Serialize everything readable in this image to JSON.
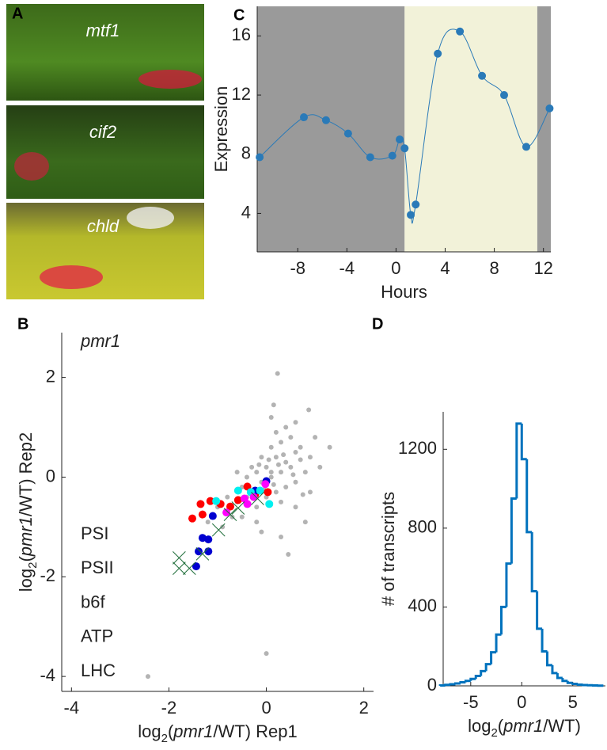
{
  "panel_a": {
    "label": "A",
    "photos": [
      {
        "label": "mtf1"
      },
      {
        "label": "cif2"
      },
      {
        "label": "chld"
      }
    ]
  },
  "chart_data": [
    {
      "type": "line",
      "panel": "C",
      "x": [
        -11.1,
        -7.5,
        -5.7,
        -3.9,
        -2.1,
        -0.3,
        0.3,
        0.7,
        1.2,
        1.6,
        3.4,
        5.2,
        7.0,
        8.8,
        10.6,
        12.5
      ],
      "series": [
        {
          "color": "#2a7ab8",
          "values": [
            7.8,
            10.5,
            10.3,
            9.4,
            7.8,
            7.9,
            9.0,
            8.4,
            3.9,
            4.6,
            14.8,
            16.3,
            13.3,
            12.0,
            8.5,
            11.1
          ]
        }
      ],
      "xlim": [
        -11.3,
        12.6
      ],
      "ylim": [
        1.4,
        18
      ],
      "xticks": [
        -8,
        -4,
        0,
        4,
        8,
        12
      ],
      "yticks": [
        4,
        8,
        12,
        16
      ],
      "xlabel": [
        {
          "text": "Hours"
        }
      ],
      "ylabel": [
        {
          "text": "Expression"
        }
      ],
      "shaded_regions": [
        {
          "x0": -11.3,
          "x1": 0.7,
          "color": "#9a9a9a"
        },
        {
          "x0": 0.7,
          "x1": 11.5,
          "color": "#f2f2d9"
        },
        {
          "x0": 11.5,
          "x1": 12.6,
          "color": "#9a9a9a"
        }
      ],
      "smooth": true
    },
    {
      "type": "scatter",
      "panel": "B",
      "title": "pmr1",
      "series": [
        {
          "color": "#b3b3b3",
          "marker": "dot",
          "x": [
            0.23,
            0.87,
            0.1,
            0,
            -2.43,
            0.6,
            0.4,
            0.2,
            0,
            -0.2,
            -0.1,
            0.1,
            0.3,
            0.5,
            0.7,
            0.9,
            0.8,
            0.4,
            0.2,
            0,
            -0.3,
            -0.5,
            -0.4,
            -0.6,
            -0.8,
            -1.0,
            -0.7,
            -0.2,
            0.3,
            0.6,
            0.5,
            0.3,
            0.1,
            -0.1,
            0.2,
            0.4,
            1.0,
            1.1,
            0.9,
            0.6,
            -0.2,
            -0.5,
            -0.9,
            -1.2,
            0.3,
            0.8,
            0.45,
            -0.1,
            0.1,
            0.0,
            -0.15,
            0.35,
            0.15,
            -0.3,
            0.55,
            0.05,
            -0.05,
            0.25,
            0.7,
            -0.4,
            0.6,
            0.15,
            0.75,
            1.3,
            -0.6
          ],
          "values": [
            2.08,
            1.35,
            1.2,
            -3.54,
            -4.0,
            0.5,
            0.3,
            0.4,
            0.2,
            0.1,
            -0.1,
            0,
            0.1,
            0.2,
            0.6,
            0.4,
            0.1,
            -0.2,
            -0.3,
            -0.4,
            -0.3,
            -0.2,
            0,
            -0.5,
            -0.4,
            -0.6,
            -0.8,
            -0.6,
            -0.5,
            -0.1,
            0.8,
            0.7,
            0.6,
            0.4,
            0.9,
            1.0,
            0.8,
            0.2,
            -0.3,
            -0.6,
            -0.9,
            -0.8,
            -1.0,
            -0.9,
            -1.2,
            -0.9,
            -1.55,
            -1.1,
            0.1,
            -0.1,
            0.25,
            0.45,
            -0.15,
            0.2,
            0.05,
            0.35,
            -0.25,
            0.25,
            0.35,
            -0.4,
            1.1,
            1.45,
            -0.35,
            0.6,
            0.1
          ]
        },
        {
          "name": "PSI",
          "color": "#ff0000",
          "marker": "circle",
          "x": [
            -1.52,
            -1.31,
            -1.15,
            -0.94,
            -1.35,
            -0.58,
            -0.23,
            0.03,
            -0.39,
            -0.74
          ],
          "values": [
            -0.83,
            -0.75,
            -0.48,
            -0.54,
            -0.54,
            -0.46,
            -0.35,
            -0.3,
            -0.19,
            -0.59
          ]
        },
        {
          "name": "PSII",
          "color": "#0000d0",
          "legend_color": "#1f78c8",
          "marker": "circle",
          "x": [
            0,
            -1.1,
            -1.31,
            -1.19,
            -1.39,
            -1.19,
            -1.44,
            -0.23
          ],
          "values": [
            -0.08,
            -0.78,
            -1.22,
            -1.25,
            -1.49,
            -1.49,
            -1.79,
            -0.27
          ]
        },
        {
          "name": "b6f",
          "color": "#00f0f0",
          "marker": "circle",
          "x": [
            -1.03,
            -0.58,
            0.06,
            -0.32,
            -0.13
          ],
          "values": [
            -0.48,
            -0.27,
            -0.54,
            -0.3,
            -0.27
          ]
        },
        {
          "name": "ATP",
          "color": "#ff00ff",
          "marker": "circle",
          "x": [
            -0.82,
            -0.39,
            -0.02,
            -0.26,
            -0.45
          ],
          "values": [
            -0.71,
            -0.54,
            -0.14,
            -0.4,
            -0.43
          ]
        },
        {
          "name": "LHC",
          "color": "#1f6e3a",
          "marker": "x",
          "x": [
            -1.79,
            -1.79,
            -1.58,
            -1.31,
            -0.98,
            -0.74,
            -0.58,
            -0.18
          ],
          "values": [
            -1.62,
            -1.83,
            -1.83,
            -1.54,
            -1.06,
            -0.75,
            -0.62,
            -0.43
          ]
        }
      ],
      "xlim": [
        -4.2,
        2.2
      ],
      "ylim": [
        -4.3,
        2.9
      ],
      "xticks": [
        -4,
        -2,
        0,
        2
      ],
      "yticks": [
        -4,
        -2,
        0,
        2
      ],
      "xlabel": [
        {
          "text": "log"
        },
        {
          "text": "2",
          "style": "sub"
        },
        {
          "text": "("
        },
        {
          "text": "pmr1",
          "style": "italic"
        },
        {
          "text": "/WT) Rep1"
        }
      ],
      "ylabel": [
        {
          "text": "log"
        },
        {
          "text": "2",
          "style": "sub"
        },
        {
          "text": "("
        },
        {
          "text": "pmr1",
          "style": "italic"
        },
        {
          "text": "/WT) Rep2"
        }
      ]
    },
    {
      "type": "histogram",
      "panel": "D",
      "color": "#0072bd",
      "bins": [
        -8,
        -7.5,
        -7,
        -6.5,
        -6,
        -5.5,
        -5,
        -4.5,
        -4,
        -3.5,
        -3,
        -2.5,
        -2,
        -1.5,
        -1,
        -0.5,
        0,
        0.5,
        1,
        1.5,
        2,
        2.5,
        3,
        3.5,
        4,
        4.5,
        5,
        5.5,
        6,
        6.5,
        7,
        7.5,
        8
      ],
      "values": [
        2,
        5,
        8,
        12,
        18,
        25,
        35,
        50,
        75,
        110,
        170,
        260,
        400,
        620,
        950,
        1330,
        1150,
        780,
        480,
        290,
        175,
        105,
        65,
        40,
        25,
        15,
        10,
        6,
        4,
        3,
        2,
        1
      ],
      "xlim": [
        -7.7,
        8.2
      ],
      "ylim": [
        0,
        1390
      ],
      "xticks": [
        -5,
        0,
        5
      ],
      "yticks": [
        0,
        400,
        800,
        1200
      ],
      "xlabel": [
        {
          "text": "log"
        },
        {
          "text": "2",
          "style": "sub"
        },
        {
          "text": "("
        },
        {
          "text": "pmr1",
          "style": "italic"
        },
        {
          "text": "/WT)"
        }
      ],
      "ylabel": [
        {
          "text": "# of transcripts"
        }
      ]
    }
  ]
}
